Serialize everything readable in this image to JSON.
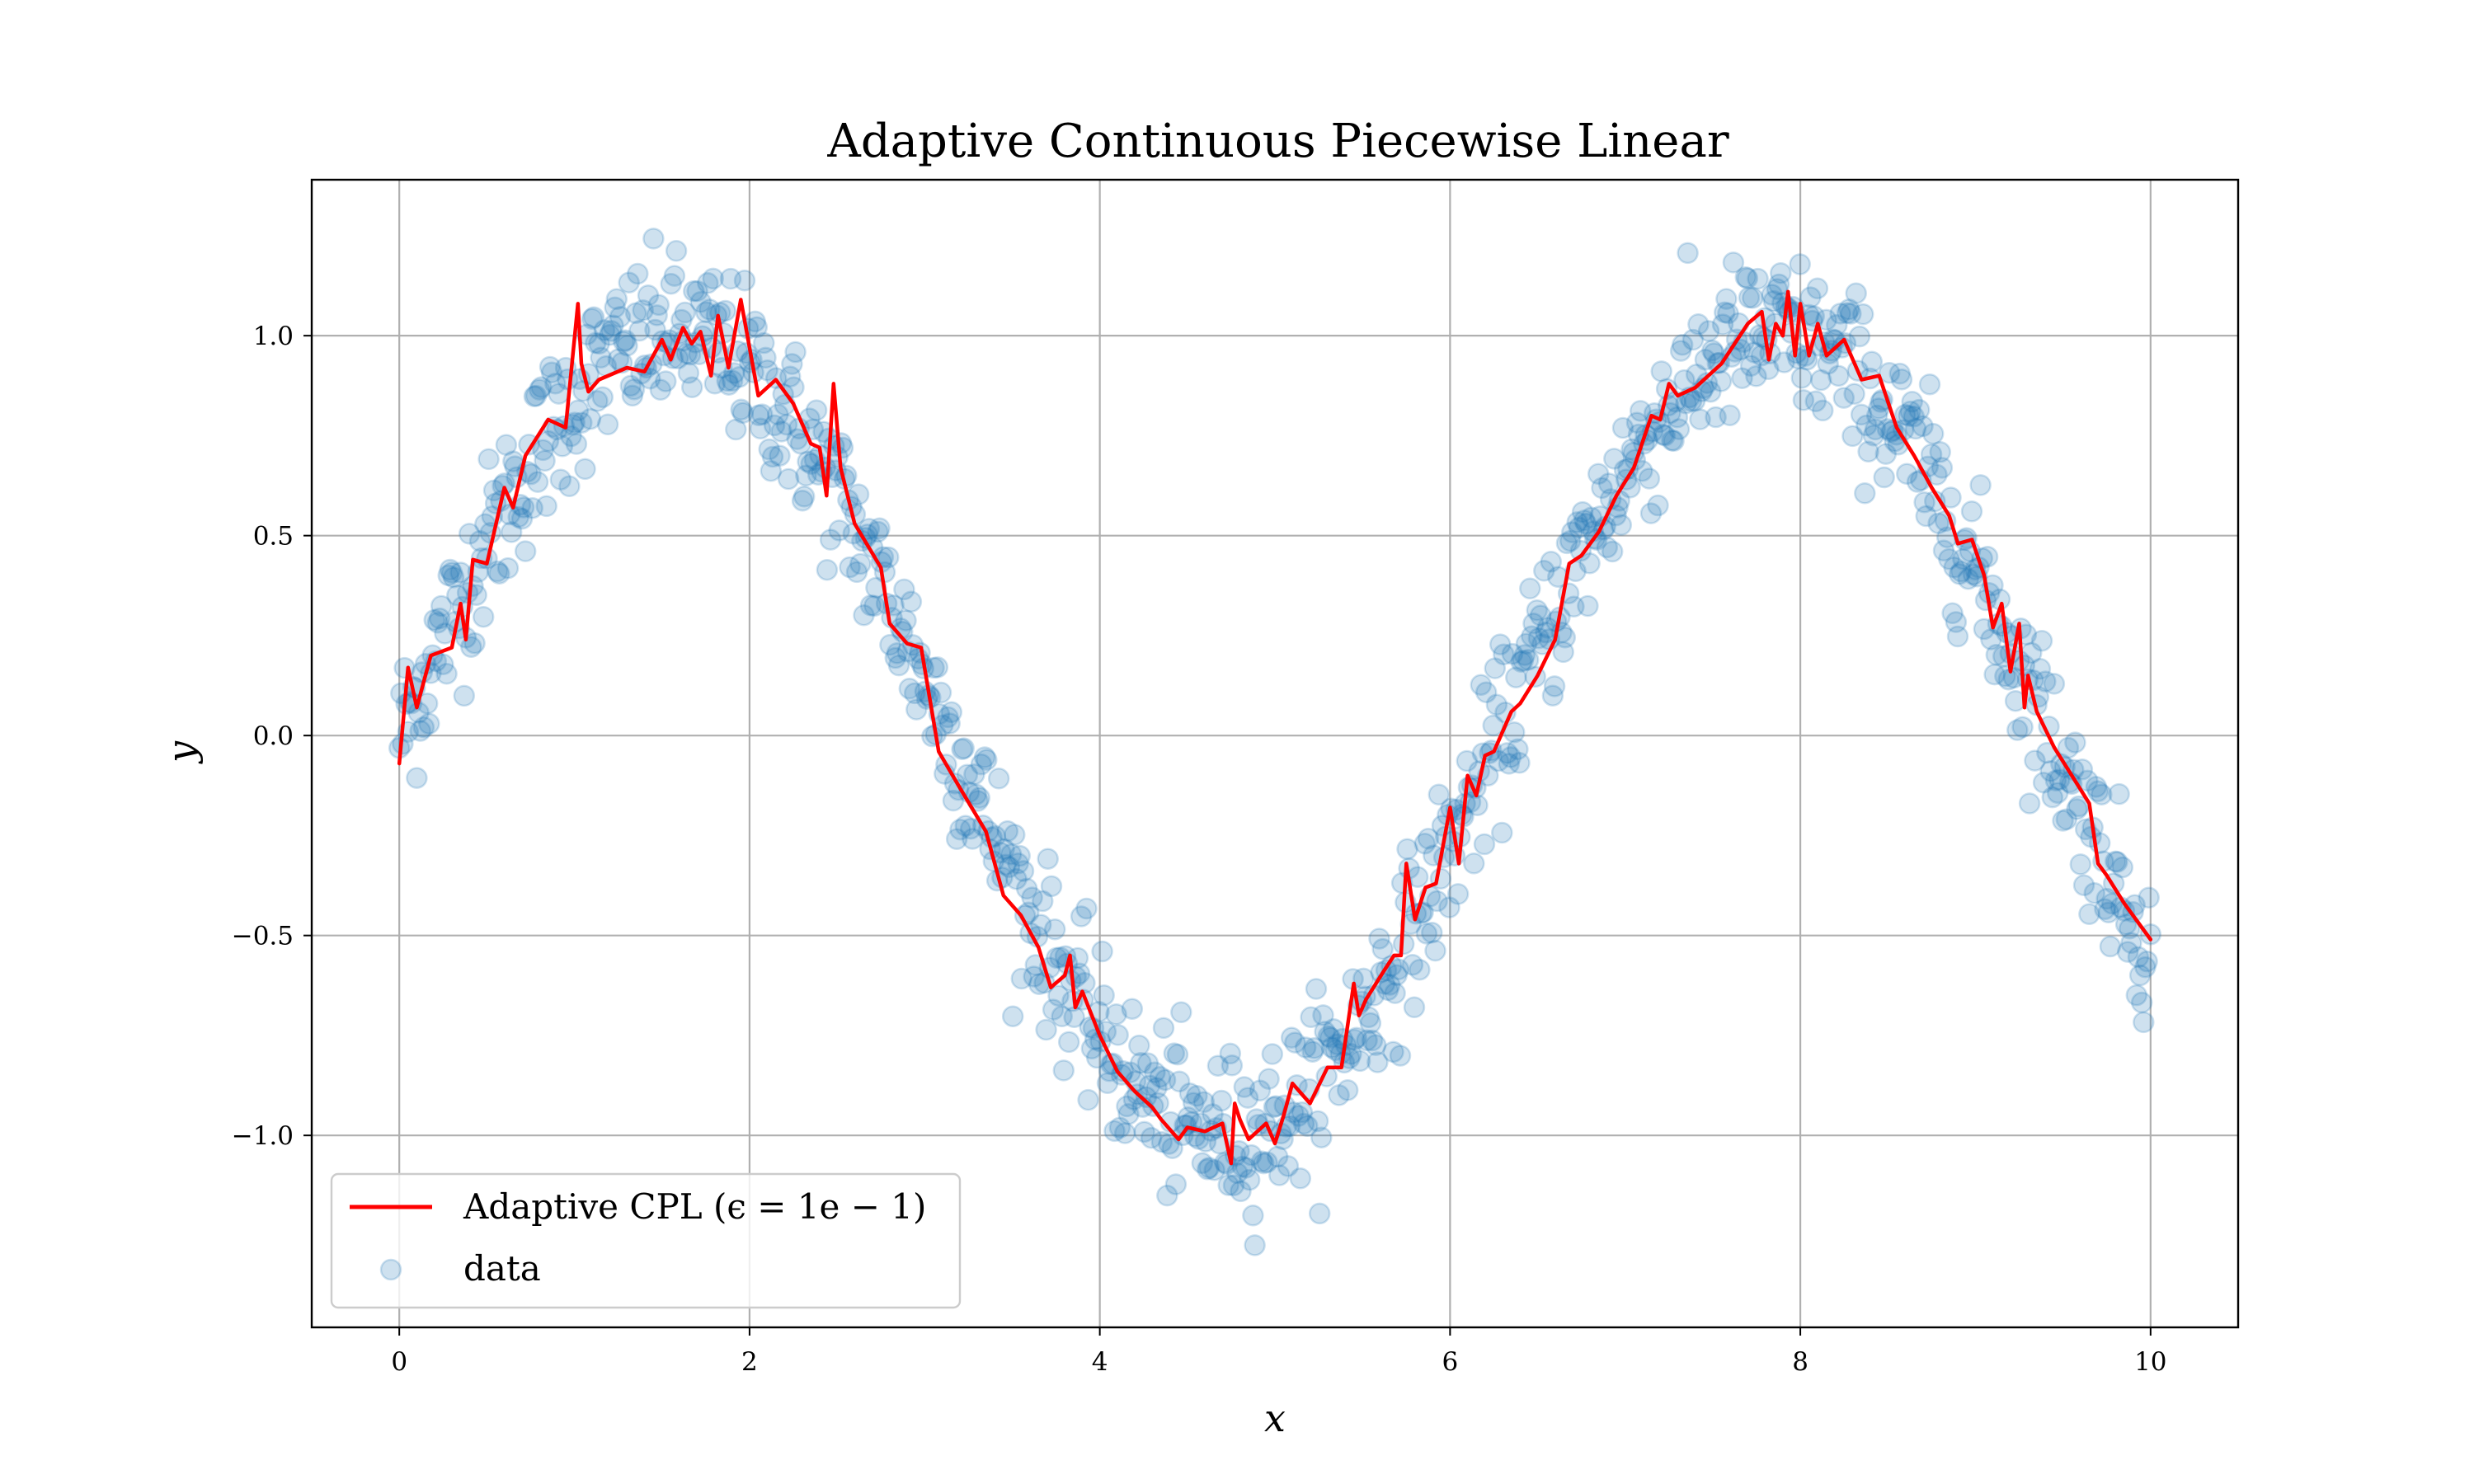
{
  "chart_data": {
    "type": "scatter",
    "title": "Adaptive Continuous Piecewise Linear",
    "xlabel": "x",
    "ylabel": "y",
    "xlim": [
      -0.5,
      10.5
    ],
    "ylim": [
      -1.48,
      1.39
    ],
    "x_ticks": [
      0,
      2,
      4,
      6,
      8,
      10
    ],
    "x_tick_labels": [
      "0",
      "2",
      "4",
      "6",
      "8",
      "10"
    ],
    "y_ticks": [
      1.0,
      0.5,
      0.0,
      -0.5,
      -1.0
    ],
    "y_tick_labels": [
      "1.0",
      "0.5",
      "0.0",
      "−0.5",
      "−1.0"
    ],
    "grid": true,
    "legend_position": "bottom-left",
    "series": [
      {
        "name": "Adaptive CPL (ϵ = 1e − 1)",
        "kind": "line",
        "color": "#ff0000",
        "x": [
          0.0,
          0.05,
          0.1,
          0.18,
          0.3,
          0.35,
          0.38,
          0.42,
          0.5,
          0.6,
          0.65,
          0.72,
          0.85,
          0.95,
          1.02,
          1.04,
          1.08,
          1.14,
          1.3,
          1.4,
          1.5,
          1.55,
          1.62,
          1.67,
          1.72,
          1.78,
          1.82,
          1.88,
          1.95,
          2.05,
          2.15,
          2.25,
          2.35,
          2.4,
          2.44,
          2.48,
          2.52,
          2.6,
          2.75,
          2.8,
          2.9,
          2.98,
          3.08,
          3.2,
          3.35,
          3.45,
          3.55,
          3.65,
          3.72,
          3.8,
          3.83,
          3.86,
          3.9,
          4.0,
          4.1,
          4.2,
          4.3,
          4.35,
          4.45,
          4.5,
          4.6,
          4.7,
          4.75,
          4.77,
          4.8,
          4.85,
          4.95,
          5.0,
          5.05,
          5.1,
          5.2,
          5.3,
          5.38,
          5.45,
          5.48,
          5.52,
          5.62,
          5.68,
          5.72,
          5.75,
          5.8,
          5.86,
          5.92,
          6.0,
          6.05,
          6.1,
          6.15,
          6.2,
          6.25,
          6.35,
          6.4,
          6.5,
          6.6,
          6.68,
          6.75,
          6.85,
          6.95,
          7.05,
          7.15,
          7.2,
          7.25,
          7.3,
          7.4,
          7.55,
          7.7,
          7.78,
          7.82,
          7.86,
          7.9,
          7.93,
          7.97,
          8.0,
          8.05,
          8.1,
          8.15,
          8.25,
          8.35,
          8.45,
          8.55,
          8.65,
          8.75,
          8.85,
          8.9,
          8.98,
          9.05,
          9.1,
          9.15,
          9.2,
          9.25,
          9.28,
          9.3,
          9.35,
          9.45,
          9.55,
          9.65,
          9.7,
          9.75,
          9.85,
          10.0
        ],
        "y": [
          -0.07,
          0.17,
          0.07,
          0.2,
          0.22,
          0.33,
          0.24,
          0.44,
          0.43,
          0.62,
          0.57,
          0.7,
          0.79,
          0.77,
          1.08,
          0.93,
          0.86,
          0.89,
          0.92,
          0.91,
          0.99,
          0.94,
          1.02,
          0.98,
          1.01,
          0.9,
          1.05,
          0.92,
          1.09,
          0.85,
          0.89,
          0.83,
          0.73,
          0.72,
          0.6,
          0.88,
          0.67,
          0.53,
          0.42,
          0.28,
          0.23,
          0.22,
          -0.04,
          -0.13,
          -0.24,
          -0.4,
          -0.45,
          -0.53,
          -0.63,
          -0.6,
          -0.55,
          -0.68,
          -0.64,
          -0.75,
          -0.84,
          -0.89,
          -0.93,
          -0.96,
          -1.01,
          -0.98,
          -0.99,
          -0.97,
          -1.07,
          -0.92,
          -0.96,
          -1.01,
          -0.97,
          -1.02,
          -0.95,
          -0.87,
          -0.92,
          -0.83,
          -0.83,
          -0.62,
          -0.7,
          -0.66,
          -0.59,
          -0.55,
          -0.55,
          -0.32,
          -0.46,
          -0.38,
          -0.37,
          -0.18,
          -0.32,
          -0.1,
          -0.15,
          -0.05,
          -0.04,
          0.06,
          0.08,
          0.15,
          0.24,
          0.43,
          0.45,
          0.51,
          0.6,
          0.67,
          0.8,
          0.79,
          0.88,
          0.85,
          0.87,
          0.93,
          1.03,
          1.06,
          0.94,
          1.03,
          1.0,
          1.11,
          0.95,
          1.08,
          0.95,
          1.03,
          0.95,
          0.99,
          0.89,
          0.9,
          0.77,
          0.7,
          0.62,
          0.55,
          0.48,
          0.49,
          0.4,
          0.27,
          0.33,
          0.16,
          0.28,
          0.07,
          0.15,
          0.06,
          -0.03,
          -0.1,
          -0.17,
          -0.32,
          -0.35,
          -0.42,
          -0.51
        ]
      },
      {
        "name": "data",
        "kind": "scatter",
        "color": "#1f77b4",
        "alpha": 0.22,
        "generator": "sin(x) + noise",
        "n_points": 1000,
        "noise_sd": 0.1
      }
    ]
  }
}
